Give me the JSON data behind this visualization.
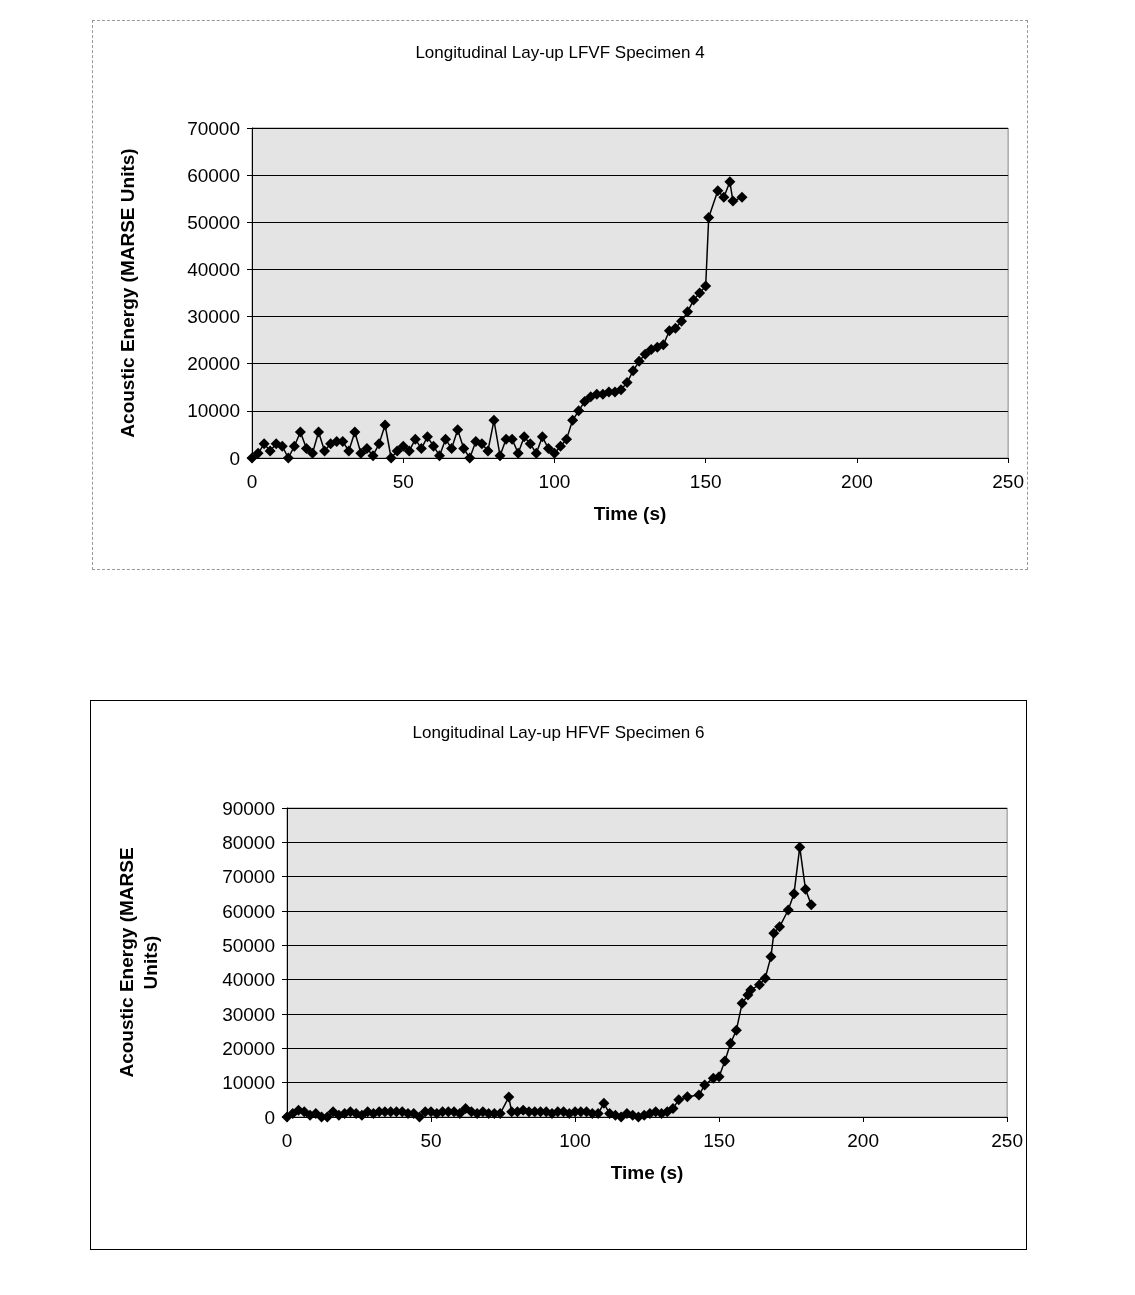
{
  "chart_data": [
    {
      "type": "line",
      "title": "Longitudinal Lay-up LFVF Specimen 4",
      "xlabel": "Time (s)",
      "ylabel": "Acoustic Energy (MARSE Units)",
      "x": [
        0,
        2,
        4,
        6,
        8,
        10,
        12,
        14,
        16,
        18,
        20,
        22,
        24,
        26,
        28,
        30,
        32,
        34,
        36,
        38,
        40,
        42,
        44,
        46,
        48,
        50,
        52,
        54,
        56,
        58,
        60,
        62,
        64,
        66,
        68,
        70,
        72,
        74,
        76,
        78,
        80,
        82,
        84,
        86,
        88,
        90,
        92,
        94,
        96,
        98,
        100,
        102,
        104,
        106,
        108,
        110,
        112,
        114,
        116,
        118,
        120,
        122,
        124,
        126,
        128,
        130,
        132,
        134,
        136,
        138,
        140,
        142,
        144,
        146,
        148,
        150,
        151,
        154,
        156,
        158,
        159,
        162
      ],
      "series": [
        {
          "color": "#000000",
          "values": [
            0,
            1000,
            3000,
            1500,
            3000,
            2500,
            0,
            2500,
            5500,
            2000,
            1000,
            5500,
            1500,
            3000,
            3500,
            3500,
            1500,
            5500,
            1000,
            2000,
            500,
            3000,
            7000,
            0,
            1500,
            2500,
            1500,
            4000,
            2000,
            4500,
            2500,
            500,
            4000,
            2000,
            6000,
            2000,
            0,
            3500,
            3000,
            1500,
            8000,
            500,
            4000,
            4000,
            1000,
            4500,
            3000,
            1000,
            4500,
            2000,
            1000,
            2500,
            4000,
            8000,
            10000,
            12000,
            13000,
            13500,
            13500,
            14000,
            14000,
            14500,
            16000,
            18500,
            20500,
            22000,
            23000,
            23500,
            24000,
            27000,
            27500,
            29000,
            31000,
            33500,
            35000,
            36500,
            51000,
            56700,
            55300,
            58600,
            54500,
            55300
          ]
        }
      ],
      "xlim": [
        0,
        250
      ],
      "xticks": [
        0,
        50,
        100,
        150,
        200,
        250
      ],
      "ylim": [
        0,
        70000
      ],
      "yticks": [
        0,
        10000,
        20000,
        30000,
        40000,
        50000,
        60000,
        70000
      ],
      "grid": "y",
      "marker": "diamond",
      "line_style": "solid"
    },
    {
      "type": "line",
      "title": "Longitudinal Lay-up HFVF Specimen 6",
      "xlabel": "Time (s)",
      "ylabel": "Acoustic Energy (MARSE Units)",
      "x": [
        0,
        2,
        4,
        6,
        8,
        10,
        12,
        14,
        16,
        18,
        20,
        22,
        24,
        26,
        28,
        30,
        32,
        34,
        36,
        38,
        40,
        42,
        44,
        46,
        48,
        50,
        52,
        54,
        56,
        58,
        60,
        62,
        64,
        66,
        68,
        70,
        72,
        74,
        77,
        78,
        80,
        82,
        84,
        86,
        88,
        90,
        92,
        94,
        96,
        98,
        100,
        102,
        104,
        106,
        108,
        110,
        112,
        114,
        116,
        118,
        120,
        122,
        124,
        126,
        128,
        130,
        132,
        134,
        136,
        139,
        143,
        145,
        148,
        150,
        152,
        154,
        156,
        158,
        160,
        161,
        164,
        166,
        168,
        169,
        171,
        174,
        176,
        178,
        180,
        182
      ],
      "series": [
        {
          "color": "#000000",
          "values": [
            0,
            1000,
            2000,
            1500,
            500,
            1000,
            0,
            0,
            1500,
            500,
            1000,
            1500,
            1000,
            500,
            1500,
            1000,
            1500,
            1500,
            1500,
            1500,
            1500,
            1000,
            1000,
            0,
            1500,
            1500,
            1000,
            1500,
            1500,
            1500,
            1000,
            2500,
            1500,
            1000,
            1500,
            1000,
            1000,
            1000,
            5800,
            1500,
            1500,
            2000,
            1500,
            1500,
            1500,
            1500,
            1000,
            1500,
            1500,
            1000,
            1500,
            1500,
            1500,
            1000,
            1000,
            4000,
            1000,
            500,
            0,
            1000,
            500,
            0,
            500,
            1000,
            1500,
            1000,
            1500,
            2500,
            5000,
            5900,
            6400,
            9300,
            11300,
            11700,
            16300,
            21500,
            25300,
            33100,
            35500,
            37000,
            38500,
            40400,
            46700,
            53500,
            55400,
            60300,
            65000,
            78600,
            66300,
            61800
          ]
        }
      ],
      "xlim": [
        0,
        250
      ],
      "xticks": [
        0,
        50,
        100,
        150,
        200,
        250
      ],
      "ylim": [
        0,
        90000
      ],
      "yticks": [
        0,
        10000,
        20000,
        30000,
        40000,
        50000,
        60000,
        70000,
        80000,
        90000
      ],
      "grid": "y",
      "marker": "diamond",
      "line_style": "solid"
    }
  ]
}
